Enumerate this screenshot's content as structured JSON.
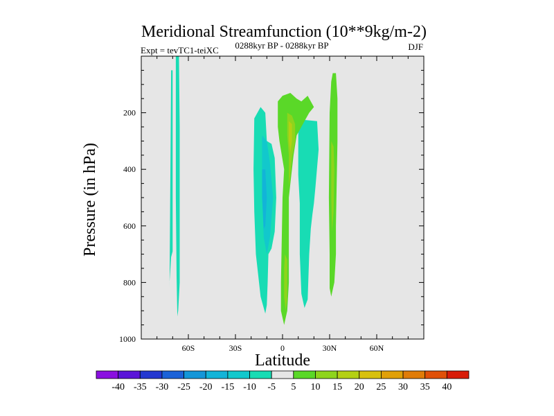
{
  "chart_data": {
    "type": "heatmap",
    "title": "Meridional Streamfunction (10**9kg/m-2)",
    "subtitle_left": "Expt = tevTC1-teiXC",
    "subtitle_center": "0288kyr BP - 0288kyr BP",
    "subtitle_right": "DJF",
    "xlabel": "Latitude",
    "ylabel": "Pressure (in hPa)",
    "xlim": [
      -90,
      90
    ],
    "ylim": [
      1000,
      0
    ],
    "x_ticks": [
      {
        "value": -60,
        "label": "60S"
      },
      {
        "value": -30,
        "label": "30S"
      },
      {
        "value": 0,
        "label": "0"
      },
      {
        "value": 30,
        "label": "30N"
      },
      {
        "value": 60,
        "label": "60N"
      }
    ],
    "y_ticks": [
      {
        "value": 200,
        "label": "200"
      },
      {
        "value": 400,
        "label": "400"
      },
      {
        "value": 600,
        "label": "600"
      },
      {
        "value": 800,
        "label": "800"
      },
      {
        "value": 1000,
        "label": "1000"
      }
    ],
    "colorbar": {
      "labels": [
        "-40",
        "-35",
        "-30",
        "-25",
        "-20",
        "-15",
        "-10",
        "-5",
        "5",
        "10",
        "15",
        "20",
        "25",
        "30",
        "35",
        "40"
      ],
      "colors": [
        "#8a10e0",
        "#5a14d8",
        "#2438d0",
        "#1c62d8",
        "#1496d8",
        "#12b4d8",
        "#12c8cc",
        "#18dcb4",
        "#e6e6e6",
        "#5ad828",
        "#8ed41c",
        "#b4d014",
        "#d8c00c",
        "#e0a008",
        "#e07c08",
        "#e05008",
        "#d81c08"
      ]
    },
    "contours": [
      {
        "level": "-5",
        "color": "#18dcb4",
        "points": [
          [
            -71,
            50
          ],
          [
            -70,
            50
          ],
          [
            -70,
            690
          ],
          [
            -71,
            710
          ],
          [
            -72,
            800
          ],
          [
            -72,
            820
          ]
        ]
      },
      {
        "level": "-5",
        "color": "#18dcb4",
        "points": [
          [
            -68,
            0
          ],
          [
            -66,
            0
          ],
          [
            -65.5,
            250
          ],
          [
            -65.5,
            800
          ],
          [
            -66.5,
            900
          ],
          [
            -67,
            920
          ],
          [
            -67.5,
            780
          ],
          [
            -68,
            500
          ]
        ]
      },
      {
        "level": "-5",
        "color": "#18dcb4",
        "points": [
          [
            -16,
            200
          ],
          [
            -14,
            180
          ],
          [
            -11,
            200
          ],
          [
            -10,
            300
          ],
          [
            -7,
            310
          ],
          [
            -5,
            360
          ],
          [
            -4,
            500
          ],
          [
            -5,
            620
          ],
          [
            -7,
            680
          ],
          [
            -9,
            700
          ],
          [
            -9.5,
            800
          ],
          [
            -10,
            880
          ],
          [
            -11,
            910
          ],
          [
            -14,
            850
          ],
          [
            -17,
            700
          ],
          [
            -18,
            550
          ],
          [
            -18.5,
            400
          ],
          [
            -18,
            220
          ]
        ]
      },
      {
        "level": "-5",
        "color": "#18dcb4",
        "points": [
          [
            10,
            240
          ],
          [
            13,
            225
          ],
          [
            22,
            230
          ],
          [
            23,
            330
          ],
          [
            21,
            460
          ],
          [
            20,
            520
          ],
          [
            19,
            560
          ],
          [
            18,
            610
          ],
          [
            17,
            700
          ],
          [
            16,
            860
          ],
          [
            14,
            890
          ],
          [
            12,
            840
          ],
          [
            11,
            700
          ],
          [
            11,
            520
          ],
          [
            10,
            420
          ]
        ]
      },
      {
        "level": "-10",
        "color": "#12c8cc",
        "points": [
          [
            -13,
            280
          ],
          [
            -10,
            300
          ],
          [
            -8,
            380
          ],
          [
            -6,
            500
          ],
          [
            -8,
            640
          ],
          [
            -10,
            700
          ],
          [
            -12,
            640
          ],
          [
            -13,
            480
          ]
        ]
      },
      {
        "level": "-15",
        "color": "#12b4d8",
        "points": [
          [
            -13,
            400
          ],
          [
            -11,
            400
          ],
          [
            -10,
            500
          ],
          [
            -11,
            600
          ],
          [
            -12,
            610
          ],
          [
            -13,
            500
          ]
        ]
      },
      {
        "level": "5",
        "color": "#5ad828",
        "points": [
          [
            -3,
            160
          ],
          [
            0,
            140
          ],
          [
            5,
            130
          ],
          [
            9,
            150
          ],
          [
            12,
            160
          ],
          [
            16,
            140
          ],
          [
            18,
            160
          ],
          [
            20,
            180
          ],
          [
            17,
            200
          ],
          [
            14,
            230
          ],
          [
            11,
            260
          ],
          [
            9,
            280
          ],
          [
            7,
            350
          ],
          [
            5,
            450
          ],
          [
            4,
            500
          ],
          [
            4,
            800
          ],
          [
            3,
            900
          ],
          [
            1,
            950
          ],
          [
            -1,
            900
          ],
          [
            -1,
            800
          ],
          [
            0,
            500
          ],
          [
            1,
            400
          ],
          [
            -2,
            300
          ],
          [
            -3,
            250
          ]
        ]
      },
      {
        "level": "5",
        "color": "#5ad828",
        "points": [
          [
            31,
            90
          ],
          [
            32,
            60
          ],
          [
            34,
            60
          ],
          [
            35,
            150
          ],
          [
            35,
            300
          ],
          [
            34,
            600
          ],
          [
            34,
            700
          ],
          [
            33,
            800
          ],
          [
            31,
            850
          ],
          [
            30,
            820
          ],
          [
            30,
            700
          ],
          [
            29.5,
            500
          ],
          [
            30,
            200
          ]
        ]
      },
      {
        "level": "10",
        "color": "#8ed41c",
        "points": [
          [
            3,
            200
          ],
          [
            6,
            210
          ],
          [
            8,
            240
          ],
          [
            8,
            300
          ],
          [
            6,
            360
          ],
          [
            5,
            420
          ],
          [
            4,
            460
          ],
          [
            4,
            350
          ],
          [
            3,
            280
          ]
        ]
      },
      {
        "level": "10",
        "color": "#8ed41c",
        "points": [
          [
            1.5,
            700
          ],
          [
            3,
            720
          ],
          [
            3,
            860
          ],
          [
            2,
            900
          ],
          [
            1,
            850
          ],
          [
            1,
            750
          ]
        ]
      },
      {
        "level": "10",
        "color": "#8ed41c",
        "points": [
          [
            31,
            300
          ],
          [
            32.5,
            320
          ],
          [
            33,
            400
          ],
          [
            32.5,
            550
          ],
          [
            31.5,
            620
          ],
          [
            31,
            500
          ]
        ]
      },
      {
        "level": "15",
        "color": "#b4d014",
        "points": [
          [
            4,
            230
          ],
          [
            6,
            240
          ],
          [
            6,
            300
          ],
          [
            5,
            340
          ],
          [
            4,
            300
          ]
        ]
      }
    ]
  }
}
